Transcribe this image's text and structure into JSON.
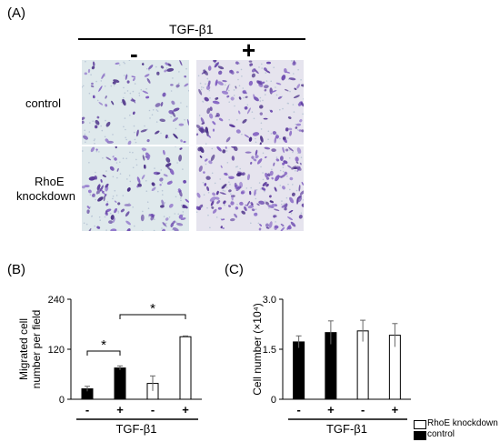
{
  "panel_a": {
    "label": "(A)",
    "treatment_header": "TGF-β1",
    "column_labels": [
      "-",
      "+"
    ],
    "row_labels": {
      "control": "control",
      "rhoe_line1": "RhoE",
      "rhoe_line2": "knockdown"
    }
  },
  "panel_b_label": "(B)",
  "panel_c_label": "(C)",
  "legend": {
    "rhoe": "RhoE knockdown",
    "control": "control"
  },
  "chart_data": [
    {
      "type": "bar",
      "panel": "B",
      "ylabel": "Migrated cell number per field",
      "xlabel": "TGF-β1",
      "categories": [
        "-",
        "+",
        "-",
        "+"
      ],
      "yticks": [
        0,
        120,
        240
      ],
      "ylim": [
        0,
        240
      ],
      "values": [
        25,
        75,
        38,
        150
      ],
      "errors": [
        6,
        5,
        18,
        2
      ],
      "fill": [
        "black",
        "black",
        "white",
        "white"
      ],
      "significance": [
        {
          "pair": [
            0,
            1
          ],
          "label": "*"
        },
        {
          "pair": [
            1,
            3
          ],
          "label": "*"
        }
      ]
    },
    {
      "type": "bar",
      "panel": "C",
      "ylabel": "Cell number (×10⁴)",
      "xlabel": "TGF-β1",
      "categories": [
        "-",
        "+",
        "-",
        "+"
      ],
      "yticks": [
        0,
        1.5,
        3.0
      ],
      "ytick_labels": [
        "0",
        "1.5",
        "3.0"
      ],
      "ylim": [
        0,
        3.0
      ],
      "values": [
        1.72,
        2.0,
        2.05,
        1.92
      ],
      "errors": [
        0.18,
        0.35,
        0.32,
        0.35
      ],
      "fill": [
        "black",
        "black",
        "white",
        "white"
      ]
    }
  ]
}
